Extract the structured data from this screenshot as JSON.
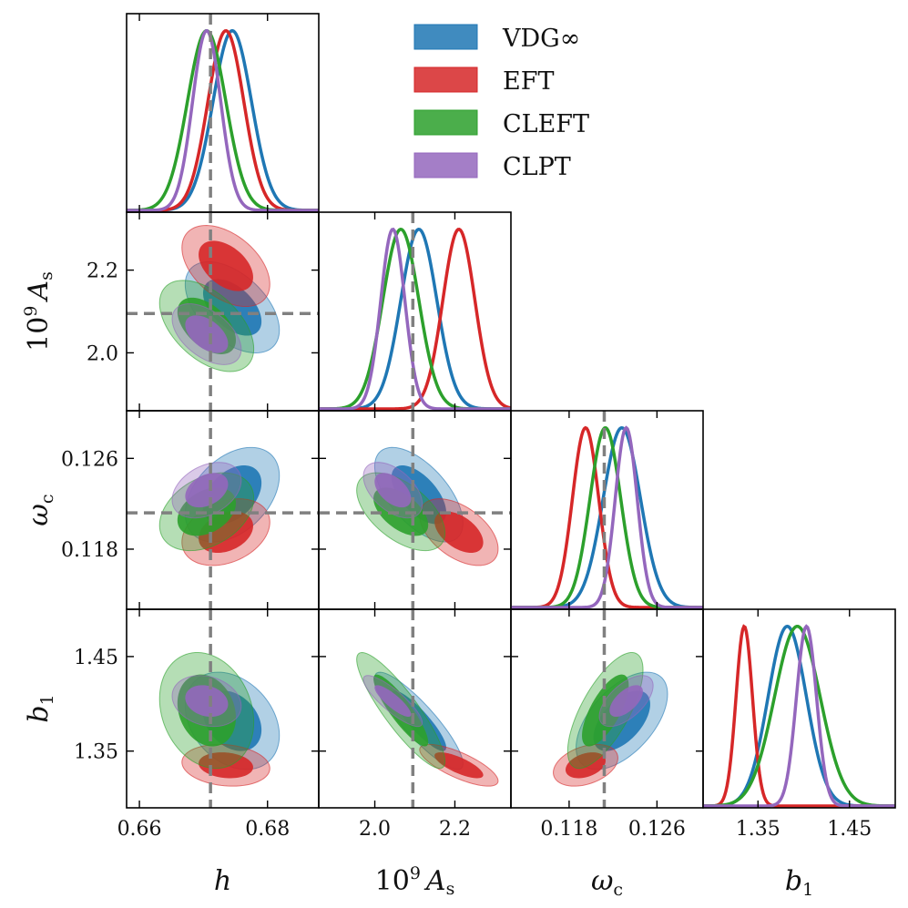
{
  "chart_data": {
    "type": "corner",
    "params": [
      {
        "key": "h",
        "label": "h",
        "range": [
          0.658,
          0.688
        ],
        "ticks": [
          0.66,
          0.68
        ],
        "tick_labels": [
          "0.66",
          "0.68"
        ],
        "fiducial": 0.6711
      },
      {
        "key": "As",
        "label": "10⁹ Aₛ",
        "range": [
          1.86,
          2.34
        ],
        "ticks": [
          2.0,
          2.2
        ],
        "tick_labels": [
          "2.0",
          "2.2"
        ],
        "fiducial": 2.095
      },
      {
        "key": "wc",
        "label": "ω_c",
        "range": [
          0.1127,
          0.1302
        ],
        "ticks": [
          0.118,
          0.126
        ],
        "tick_labels": [
          "0.118",
          "0.126"
        ],
        "fiducial": 0.1212
      },
      {
        "key": "b1",
        "label": "b₁",
        "range": [
          1.29,
          1.5
        ],
        "ticks": [
          1.35,
          1.45
        ],
        "tick_labels": [
          "1.35",
          "1.45"
        ],
        "fiducial": null
      }
    ],
    "series": [
      {
        "name": "VDG∞",
        "color": "#1f77b4",
        "mean": {
          "h": 0.6745,
          "As": 2.11,
          "wc": 0.1228,
          "b1": 1.382
        },
        "sigma": {
          "h": 0.003,
          "As": 0.045,
          "wc": 0.0017,
          "b1": 0.021
        },
        "corr": {
          "h|As": -0.5,
          "h|wc": 0.4,
          "As|wc": -0.6,
          "h|b1": -0.3,
          "As|b1": -0.88,
          "wc|b1": 0.55
        }
      },
      {
        "name": "EFT",
        "color": "#d62728",
        "mean": {
          "h": 0.6735,
          "As": 2.21,
          "wc": 0.1195,
          "b1": 1.335
        },
        "sigma": {
          "h": 0.0028,
          "As": 0.04,
          "wc": 0.0012,
          "b1": 0.009
        },
        "corr": {
          "h|As": -0.45,
          "h|wc": 0.3,
          "As|wc": -0.5,
          "h|b1": -0.15,
          "As|b1": -0.75,
          "wc|b1": 0.35
        }
      },
      {
        "name": "CLEFT",
        "color": "#2ca02c",
        "mean": {
          "h": 0.6705,
          "As": 2.065,
          "wc": 0.1213,
          "b1": 1.393
        },
        "sigma": {
          "h": 0.003,
          "As": 0.045,
          "wc": 0.0014,
          "b1": 0.025
        },
        "corr": {
          "h|As": -0.5,
          "h|wc": 0.35,
          "As|wc": -0.55,
          "h|b1": -0.2,
          "As|b1": -0.88,
          "wc|b1": 0.7
        }
      },
      {
        "name": "CLPT",
        "color": "#9467bd",
        "mean": {
          "h": 0.6705,
          "As": 2.045,
          "wc": 0.1232,
          "b1": 1.403
        },
        "sigma": {
          "h": 0.0022,
          "As": 0.03,
          "wc": 0.001,
          "b1": 0.011
        },
        "corr": {
          "h|As": -0.5,
          "h|wc": 0.35,
          "As|wc": -0.5,
          "h|b1": -0.2,
          "As|b1": -0.85,
          "wc|b1": 0.6
        }
      }
    ],
    "legend": {
      "position": "top-right",
      "entries": [
        "VDG∞",
        "EFT",
        "CLEFT",
        "CLPT"
      ]
    },
    "contour_levels": [
      "68%",
      "95%"
    ]
  }
}
